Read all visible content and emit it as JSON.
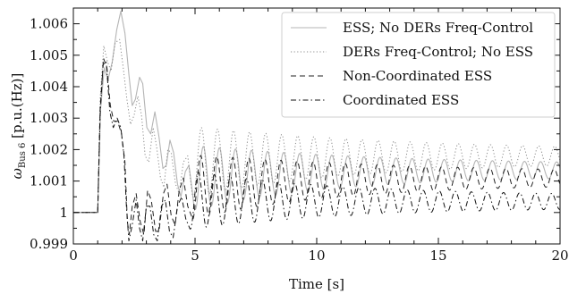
{
  "chart_data": {
    "type": "line",
    "xlabel": "Time [s]",
    "ylabel_main": "ω",
    "ylabel_sub": "Bus 6",
    "ylabel_unit": " [p.u.(Hz)]",
    "xlim": [
      0,
      20
    ],
    "ylim": [
      0.999,
      1.0065
    ],
    "xticks": [
      0,
      5,
      10,
      15,
      20
    ],
    "xtick_labels": [
      "0",
      "5",
      "10",
      "15",
      "20"
    ],
    "yticks": [
      0.999,
      1.0,
      1.001,
      1.002,
      1.003,
      1.004,
      1.005,
      1.006
    ],
    "ytick_labels": [
      "0.999",
      "1",
      "1.001",
      "1.002",
      "1.003",
      "1.004",
      "1.005",
      "1.006"
    ],
    "grid": false,
    "legend_position": "top-right",
    "series": [
      {
        "name": "ESS; No DERs Freq-Control",
        "color": "#b4b4b4",
        "style": "solid",
        "base": 1.0,
        "step": 1.0,
        "pre": [
          [
            1.0,
            1.0
          ],
          [
            1.12,
            1.0033
          ],
          [
            1.27,
            1.0046
          ],
          [
            1.42,
            1.0042
          ],
          [
            1.6,
            1.0048
          ],
          [
            1.78,
            1.0058
          ],
          [
            1.95,
            1.0064
          ],
          [
            2.12,
            1.0057
          ],
          [
            2.28,
            1.0044
          ],
          [
            2.42,
            1.0034
          ],
          [
            2.55,
            1.0036
          ],
          [
            2.72,
            1.0043
          ],
          [
            2.85,
            1.0041
          ],
          [
            3.02,
            1.0027
          ],
          [
            3.18,
            1.0025
          ],
          [
            3.35,
            1.0032
          ],
          [
            3.52,
            1.0024
          ],
          [
            3.68,
            1.0014
          ],
          [
            3.82,
            1.0015
          ],
          [
            3.97,
            1.0023
          ],
          [
            4.12,
            1.0019
          ],
          [
            4.28,
            1.0009
          ],
          [
            4.42,
            1.0005
          ],
          [
            4.6,
            1.0013
          ],
          [
            4.75,
            1.0015
          ],
          [
            4.9,
            1.0006
          ]
        ],
        "tail": {
          "start": 4.9,
          "amp0": 0.00085,
          "tau": 6.5,
          "period": 0.66,
          "mean0": 1.0011,
          "mean1": 1.00135,
          "tmean": 4.0
        }
      },
      {
        "name": "DERs Freq-Control; No ESS",
        "color": "#8a8a8a",
        "style": "dotted",
        "base": 1.0,
        "step": 1.0,
        "pre": [
          [
            1.0,
            1.0
          ],
          [
            1.1,
            1.0036
          ],
          [
            1.25,
            1.0053
          ],
          [
            1.4,
            1.0048
          ],
          [
            1.55,
            1.0045
          ],
          [
            1.72,
            1.0054
          ],
          [
            1.9,
            1.0055
          ],
          [
            2.05,
            1.0046
          ],
          [
            2.2,
            1.0036
          ],
          [
            2.35,
            1.0028
          ],
          [
            2.5,
            1.0031
          ],
          [
            2.65,
            1.0037
          ],
          [
            2.8,
            1.0031
          ],
          [
            2.95,
            1.0018
          ],
          [
            3.1,
            1.0016
          ],
          [
            3.28,
            1.0027
          ],
          [
            3.42,
            1.0021
          ],
          [
            3.58,
            1.0011
          ],
          [
            3.72,
            1.0008
          ],
          [
            3.88,
            1.002
          ],
          [
            4.02,
            1.0019
          ],
          [
            4.2,
            1.0009
          ],
          [
            4.35,
            1.0006
          ],
          [
            4.52,
            1.0016
          ],
          [
            4.7,
            1.0018
          ],
          [
            4.85,
            1.0008
          ]
        ],
        "tail": {
          "start": 4.85,
          "amp0": 0.00095,
          "tau": 7.5,
          "period": 0.66,
          "mean0": 1.0016,
          "mean1": 1.0018,
          "tmean": 4.0
        }
      },
      {
        "name": "Non-Coordinated ESS",
        "color": "#222222",
        "style": "dashed",
        "base": 1.0,
        "step": 1.0,
        "pre": [
          [
            1.0,
            1.0
          ],
          [
            1.1,
            1.0033
          ],
          [
            1.24,
            1.0049
          ],
          [
            1.38,
            1.0046
          ],
          [
            1.52,
            1.0034
          ],
          [
            1.66,
            1.0029
          ],
          [
            1.82,
            1.0029
          ],
          [
            1.98,
            1.0025
          ],
          [
            2.12,
            1.0016
          ],
          [
            2.22,
            0.9997
          ],
          [
            2.3,
            0.9993
          ],
          [
            2.42,
            1.0002
          ],
          [
            2.58,
            1.0006
          ],
          [
            2.75,
            0.9997
          ],
          [
            2.9,
            0.9993
          ],
          [
            3.05,
            1.0007
          ],
          [
            3.2,
            1.0004
          ],
          [
            3.38,
            0.9994
          ],
          [
            3.52,
            0.9994
          ],
          [
            3.7,
            1.0006
          ],
          [
            3.85,
            1.0009
          ],
          [
            4.02,
            0.9999
          ],
          [
            4.18,
            0.9996
          ],
          [
            4.35,
            1.0007
          ],
          [
            4.52,
            1.0011
          ],
          [
            4.7,
            1.0002
          ],
          [
            4.85,
            0.9999
          ]
        ],
        "tail": {
          "start": 4.85,
          "amp0": 0.00085,
          "tau": 7.0,
          "period": 0.66,
          "mean0": 1.0008,
          "mean1": 1.0011,
          "tmean": 4.0
        }
      },
      {
        "name": "Coordinated ESS",
        "color": "#111111",
        "style": "dashdot",
        "base": 1.0,
        "step": 1.0,
        "pre": [
          [
            1.0,
            1.0
          ],
          [
            1.1,
            1.0031
          ],
          [
            1.22,
            1.0047
          ],
          [
            1.35,
            1.0048
          ],
          [
            1.5,
            1.0032
          ],
          [
            1.64,
            1.0027
          ],
          [
            1.8,
            1.003
          ],
          [
            1.95,
            1.0027
          ],
          [
            2.08,
            1.0018
          ],
          [
            2.18,
            1.0002
          ],
          [
            2.28,
            0.9991
          ],
          [
            2.42,
            0.9996
          ],
          [
            2.58,
            1.0004
          ],
          [
            2.72,
            0.9995
          ],
          [
            2.85,
            0.9991
          ],
          [
            3.0,
            1.0002
          ],
          [
            3.15,
            1.0002
          ],
          [
            3.3,
            0.9993
          ],
          [
            3.45,
            0.9991
          ],
          [
            3.62,
            1.0002
          ],
          [
            3.78,
            1.0004
          ],
          [
            3.95,
            0.9994
          ],
          [
            4.1,
            0.9992
          ],
          [
            4.28,
            1.0002
          ],
          [
            4.45,
            1.0005
          ],
          [
            4.62,
            0.9998
          ],
          [
            4.78,
            0.9995
          ]
        ],
        "tail": {
          "start": 4.78,
          "amp0": 0.00075,
          "tau": 6.5,
          "period": 0.66,
          "mean0": 1.0004,
          "mean1": 1.00035,
          "tmean": 3.0
        }
      }
    ]
  }
}
